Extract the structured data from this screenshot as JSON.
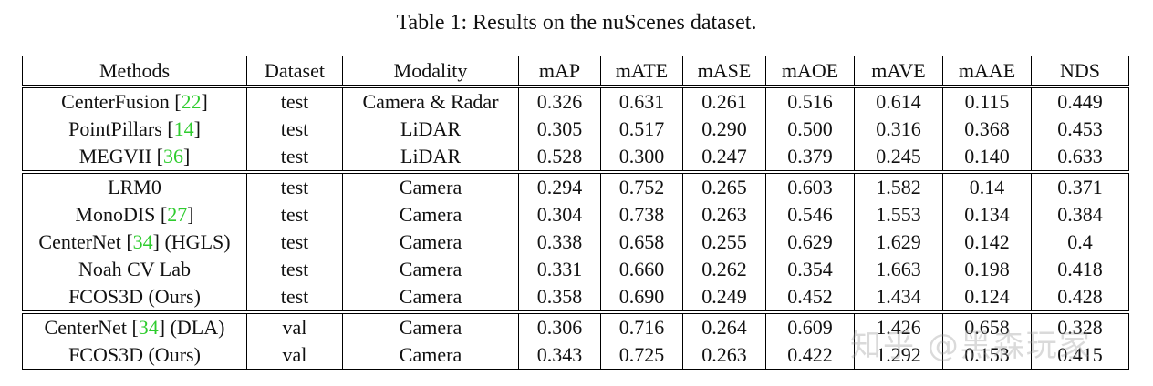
{
  "caption": "Table 1: Results on the nuScenes dataset.",
  "columns": [
    "Methods",
    "Dataset",
    "Modality",
    "mAP",
    "mATE",
    "mASE",
    "mAOE",
    "mAVE",
    "mAAE",
    "NDS"
  ],
  "rows": [
    {
      "method": "CenterFusion",
      "cite": "22",
      "suffix": "",
      "dataset": "test",
      "modality": "Camera & Radar",
      "mAP": "0.326",
      "mATE": "0.631",
      "mASE": "0.261",
      "mAOE": "0.516",
      "mAVE": "0.614",
      "mAAE": "0.115",
      "NDS": "0.449"
    },
    {
      "method": "PointPillars",
      "cite": "14",
      "suffix": "",
      "dataset": "test",
      "modality": "LiDAR",
      "mAP": "0.305",
      "mATE": "0.517",
      "mASE": "0.290",
      "mAOE": "0.500",
      "mAVE": "0.316",
      "mAAE": "0.368",
      "NDS": "0.453"
    },
    {
      "method": "MEGVII",
      "cite": "36",
      "suffix": "",
      "dataset": "test",
      "modality": "LiDAR",
      "mAP": "0.528",
      "mATE": "0.300",
      "mASE": "0.247",
      "mAOE": "0.379",
      "mAVE": "0.245",
      "mAAE": "0.140",
      "NDS": "0.633"
    },
    {
      "method": "LRM0",
      "cite": "",
      "suffix": "",
      "dataset": "test",
      "modality": "Camera",
      "mAP": "0.294",
      "mATE": "0.752",
      "mASE": "0.265",
      "mAOE": "0.603",
      "mAVE": "1.582",
      "mAAE": "0.14",
      "NDS": "0.371"
    },
    {
      "method": "MonoDIS",
      "cite": "27",
      "suffix": "",
      "dataset": "test",
      "modality": "Camera",
      "mAP": "0.304",
      "mATE": "0.738",
      "mASE": "0.263",
      "mAOE": "0.546",
      "mAVE": "1.553",
      "mAAE": "0.134",
      "NDS": "0.384"
    },
    {
      "method": "CenterNet",
      "cite": "34",
      "suffix": "(HGLS)",
      "dataset": "test",
      "modality": "Camera",
      "mAP": "0.338",
      "mATE": "0.658",
      "mASE": "0.255",
      "mAOE": "0.629",
      "mAVE": "1.629",
      "mAAE": "0.142",
      "NDS": "0.4"
    },
    {
      "method": "Noah CV Lab",
      "cite": "",
      "suffix": "",
      "dataset": "test",
      "modality": "Camera",
      "mAP": "0.331",
      "mATE": "0.660",
      "mASE": "0.262",
      "mAOE": "0.354",
      "mAVE": "1.663",
      "mAAE": "0.198",
      "NDS": "0.418"
    },
    {
      "method": "FCOS3D (Ours)",
      "cite": "",
      "suffix": "",
      "dataset": "test",
      "modality": "Camera",
      "mAP": "0.358",
      "mATE": "0.690",
      "mASE": "0.249",
      "mAOE": "0.452",
      "mAVE": "1.434",
      "mAAE": "0.124",
      "NDS": "0.428"
    },
    {
      "method": "CenterNet",
      "cite": "34",
      "suffix": "(DLA)",
      "dataset": "val",
      "modality": "Camera",
      "mAP": "0.306",
      "mATE": "0.716",
      "mASE": "0.264",
      "mAOE": "0.609",
      "mAVE": "1.426",
      "mAAE": "0.658",
      "NDS": "0.328"
    },
    {
      "method": "FCOS3D (Ours)",
      "cite": "",
      "suffix": "",
      "dataset": "val",
      "modality": "Camera",
      "mAP": "0.343",
      "mATE": "0.725",
      "mASE": "0.263",
      "mAOE": "0.422",
      "mAVE": "1.292",
      "mAAE": "0.153",
      "NDS": "0.415"
    }
  ],
  "watermark": "知乎 @黑森玩家"
}
